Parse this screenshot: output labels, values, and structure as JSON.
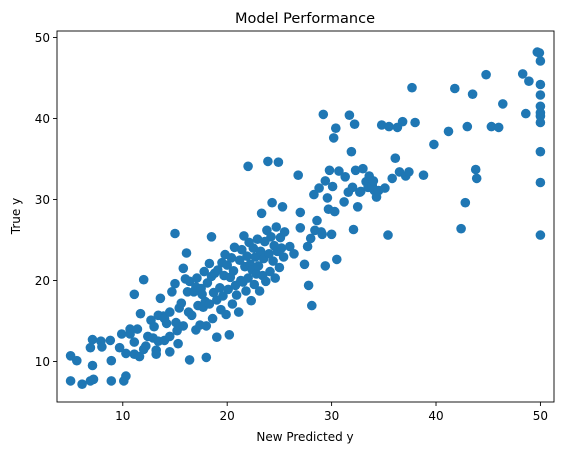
{
  "chart_data": {
    "type": "scatter",
    "title": "Model Performance",
    "xlabel": "New Predicted y",
    "ylabel": "True y",
    "xlim": [
      3.7,
      51.3
    ],
    "ylim": [
      5.0,
      50.8
    ],
    "xticks": [
      10,
      20,
      30,
      40,
      50
    ],
    "yticks": [
      10,
      20,
      30,
      40,
      50
    ],
    "grid": false,
    "legend": "none",
    "marker_color": "#1f77b4",
    "series": [
      {
        "points": [
          [
            5.0,
            10.7
          ],
          [
            5.6,
            10.1
          ],
          [
            5.0,
            7.6
          ],
          [
            6.1,
            7.2
          ],
          [
            6.9,
            7.6
          ],
          [
            7.2,
            7.8
          ],
          [
            7.1,
            9.5
          ],
          [
            6.9,
            11.7
          ],
          [
            7.1,
            12.7
          ],
          [
            7.9,
            12.5
          ],
          [
            8.0,
            11.8
          ],
          [
            8.8,
            12.6
          ],
          [
            8.9,
            10.1
          ],
          [
            8.9,
            7.6
          ],
          [
            9.7,
            11.7
          ],
          [
            9.9,
            13.4
          ],
          [
            10.3,
            11.0
          ],
          [
            10.1,
            7.6
          ],
          [
            10.3,
            8.2
          ],
          [
            10.7,
            14.0
          ],
          [
            10.7,
            13.4
          ],
          [
            11.1,
            12.4
          ],
          [
            11.1,
            18.3
          ],
          [
            11.4,
            14.0
          ],
          [
            11.1,
            10.9
          ],
          [
            11.6,
            10.6
          ],
          [
            12.0,
            11.5
          ],
          [
            11.7,
            15.9
          ],
          [
            12.0,
            20.1
          ],
          [
            12.2,
            11.9
          ],
          [
            12.4,
            13.1
          ],
          [
            12.7,
            15.1
          ],
          [
            13.0,
            14.3
          ],
          [
            12.9,
            12.9
          ],
          [
            13.2,
            11.4
          ],
          [
            13.2,
            10.9
          ],
          [
            13.4,
            15.7
          ],
          [
            13.4,
            12.5
          ],
          [
            13.6,
            17.8
          ],
          [
            13.9,
            15.6
          ],
          [
            14.0,
            15.3
          ],
          [
            14.0,
            12.6
          ],
          [
            14.2,
            14.7
          ],
          [
            14.5,
            16.1
          ],
          [
            14.5,
            13.1
          ],
          [
            14.5,
            11.2
          ],
          [
            14.7,
            18.6
          ],
          [
            15.0,
            25.8
          ],
          [
            15.0,
            19.6
          ],
          [
            15.1,
            14.8
          ],
          [
            15.2,
            13.8
          ],
          [
            15.3,
            12.2
          ],
          [
            15.4,
            16.6
          ],
          [
            15.6,
            17.2
          ],
          [
            15.8,
            14.4
          ],
          [
            15.8,
            21.5
          ],
          [
            16.0,
            20.2
          ],
          [
            16.1,
            23.4
          ],
          [
            16.2,
            18.6
          ],
          [
            16.3,
            16.1
          ],
          [
            16.4,
            19.9
          ],
          [
            16.4,
            10.2
          ],
          [
            16.6,
            15.7
          ],
          [
            16.8,
            18.6
          ],
          [
            17.0,
            13.9
          ],
          [
            17.0,
            19.2
          ],
          [
            17.1,
            20.3
          ],
          [
            17.2,
            16.9
          ],
          [
            17.4,
            14.5
          ],
          [
            17.5,
            19.0
          ],
          [
            17.6,
            18.3
          ],
          [
            17.7,
            16.7
          ],
          [
            17.8,
            21.1
          ],
          [
            17.9,
            17.4
          ],
          [
            18.0,
            10.5
          ],
          [
            18.0,
            14.4
          ],
          [
            18.1,
            19.7
          ],
          [
            18.3,
            22.1
          ],
          [
            18.3,
            17.1
          ],
          [
            18.5,
            20.5
          ],
          [
            18.5,
            25.4
          ],
          [
            18.6,
            15.3
          ],
          [
            18.7,
            18.5
          ],
          [
            18.8,
            20.9
          ],
          [
            19.0,
            13.0
          ],
          [
            19.0,
            17.6
          ],
          [
            19.1,
            21.3
          ],
          [
            19.3,
            19.1
          ],
          [
            19.4,
            16.4
          ],
          [
            19.5,
            22.2
          ],
          [
            19.6,
            18.1
          ],
          [
            19.7,
            20.6
          ],
          [
            19.8,
            23.2
          ],
          [
            19.9,
            15.8
          ],
          [
            20.0,
            21.9
          ],
          [
            20.1,
            18.9
          ],
          [
            20.2,
            13.3
          ],
          [
            20.3,
            20.4
          ],
          [
            20.4,
            22.8
          ],
          [
            20.5,
            17.1
          ],
          [
            20.6,
            21.2
          ],
          [
            20.7,
            24.1
          ],
          [
            20.8,
            19.4
          ],
          [
            20.9,
            18.2
          ],
          [
            21.1,
            16.1
          ],
          [
            21.2,
            22.5
          ],
          [
            21.3,
            20.0
          ],
          [
            21.4,
            23.8
          ],
          [
            21.5,
            19.8
          ],
          [
            21.6,
            25.5
          ],
          [
            21.7,
            21.7
          ],
          [
            21.8,
            18.7
          ],
          [
            21.9,
            23.0
          ],
          [
            22.0,
            34.1
          ],
          [
            22.0,
            20.3
          ],
          [
            22.1,
            24.7
          ],
          [
            22.2,
            22.0
          ],
          [
            22.3,
            17.5
          ],
          [
            22.4,
            21.3
          ],
          [
            22.5,
            24.0
          ],
          [
            22.6,
            19.5
          ],
          [
            22.7,
            22.9
          ],
          [
            22.8,
            20.8
          ],
          [
            22.9,
            25.1
          ],
          [
            23.0,
            21.8
          ],
          [
            23.1,
            18.7
          ],
          [
            23.2,
            23.6
          ],
          [
            23.3,
            28.3
          ],
          [
            23.4,
            20.6
          ],
          [
            23.5,
            22.7
          ],
          [
            23.6,
            24.8
          ],
          [
            23.7,
            19.9
          ],
          [
            23.8,
            26.2
          ],
          [
            23.9,
            34.7
          ],
          [
            24.0,
            23.3
          ],
          [
            24.1,
            21.1
          ],
          [
            24.2,
            25.4
          ],
          [
            24.3,
            29.6
          ],
          [
            24.4,
            22.4
          ],
          [
            24.5,
            24.3
          ],
          [
            24.6,
            20.3
          ],
          [
            24.7,
            26.6
          ],
          [
            24.8,
            23.6
          ],
          [
            24.9,
            34.6
          ],
          [
            25.0,
            21.6
          ],
          [
            25.1,
            25.3
          ],
          [
            25.2,
            24.0
          ],
          [
            25.3,
            29.1
          ],
          [
            25.4,
            22.9
          ],
          [
            25.5,
            26.0
          ],
          [
            26.0,
            24.2
          ],
          [
            26.4,
            23.3
          ],
          [
            26.8,
            33.0
          ],
          [
            27.0,
            26.5
          ],
          [
            27.0,
            28.4
          ],
          [
            27.4,
            22.0
          ],
          [
            27.7,
            24.2
          ],
          [
            27.8,
            19.4
          ],
          [
            28.0,
            25.2
          ],
          [
            28.1,
            16.9
          ],
          [
            28.3,
            30.6
          ],
          [
            28.4,
            26.2
          ],
          [
            28.6,
            27.4
          ],
          [
            28.8,
            31.4
          ],
          [
            29.0,
            26.0
          ],
          [
            29.1,
            25.7
          ],
          [
            29.2,
            40.5
          ],
          [
            29.4,
            32.3
          ],
          [
            29.4,
            21.8
          ],
          [
            29.6,
            30.2
          ],
          [
            29.7,
            28.8
          ],
          [
            29.8,
            33.6
          ],
          [
            30.0,
            25.7
          ],
          [
            30.1,
            31.6
          ],
          [
            30.2,
            37.6
          ],
          [
            30.3,
            28.5
          ],
          [
            30.4,
            38.8
          ],
          [
            30.5,
            22.6
          ],
          [
            30.7,
            33.5
          ],
          [
            31.2,
            29.7
          ],
          [
            31.3,
            32.8
          ],
          [
            31.6,
            30.9
          ],
          [
            31.7,
            40.4
          ],
          [
            31.9,
            35.9
          ],
          [
            32.0,
            31.5
          ],
          [
            32.1,
            26.3
          ],
          [
            32.2,
            39.3
          ],
          [
            32.3,
            33.6
          ],
          [
            32.5,
            29.1
          ],
          [
            32.7,
            30.9
          ],
          [
            32.8,
            31.0
          ],
          [
            33.0,
            33.8
          ],
          [
            33.3,
            32.2
          ],
          [
            33.5,
            31.5
          ],
          [
            33.6,
            32.9
          ],
          [
            33.9,
            31.7
          ],
          [
            34.0,
            32.3
          ],
          [
            34.1,
            31.1
          ],
          [
            34.3,
            30.3
          ],
          [
            34.5,
            31.1
          ],
          [
            34.8,
            39.2
          ],
          [
            35.1,
            31.4
          ],
          [
            35.4,
            25.6
          ],
          [
            35.5,
            39.0
          ],
          [
            35.8,
            32.6
          ],
          [
            36.1,
            35.1
          ],
          [
            36.3,
            38.9
          ],
          [
            36.5,
            33.4
          ],
          [
            36.8,
            39.6
          ],
          [
            37.1,
            32.9
          ],
          [
            37.4,
            33.4
          ],
          [
            37.7,
            43.8
          ],
          [
            38.0,
            39.5
          ],
          [
            38.8,
            33.0
          ],
          [
            39.8,
            36.8
          ],
          [
            41.2,
            38.4
          ],
          [
            41.8,
            43.7
          ],
          [
            42.4,
            26.4
          ],
          [
            42.8,
            29.6
          ],
          [
            43.0,
            39.0
          ],
          [
            43.5,
            43.0
          ],
          [
            43.8,
            33.7
          ],
          [
            43.9,
            32.6
          ],
          [
            44.8,
            45.4
          ],
          [
            45.3,
            39.0
          ],
          [
            46.0,
            38.9
          ],
          [
            46.4,
            41.8
          ],
          [
            48.3,
            45.5
          ],
          [
            48.6,
            40.6
          ],
          [
            48.9,
            44.6
          ],
          [
            49.7,
            48.2
          ],
          [
            49.9,
            48.1
          ],
          [
            50.0,
            47.1
          ],
          [
            50.0,
            44.2
          ],
          [
            50.0,
            42.9
          ],
          [
            50.0,
            41.5
          ],
          [
            50.0,
            40.7
          ],
          [
            50.0,
            40.3
          ],
          [
            50.0,
            39.5
          ],
          [
            50.0,
            35.9
          ],
          [
            50.0,
            32.1
          ],
          [
            50.0,
            25.6
          ]
        ]
      }
    ]
  }
}
